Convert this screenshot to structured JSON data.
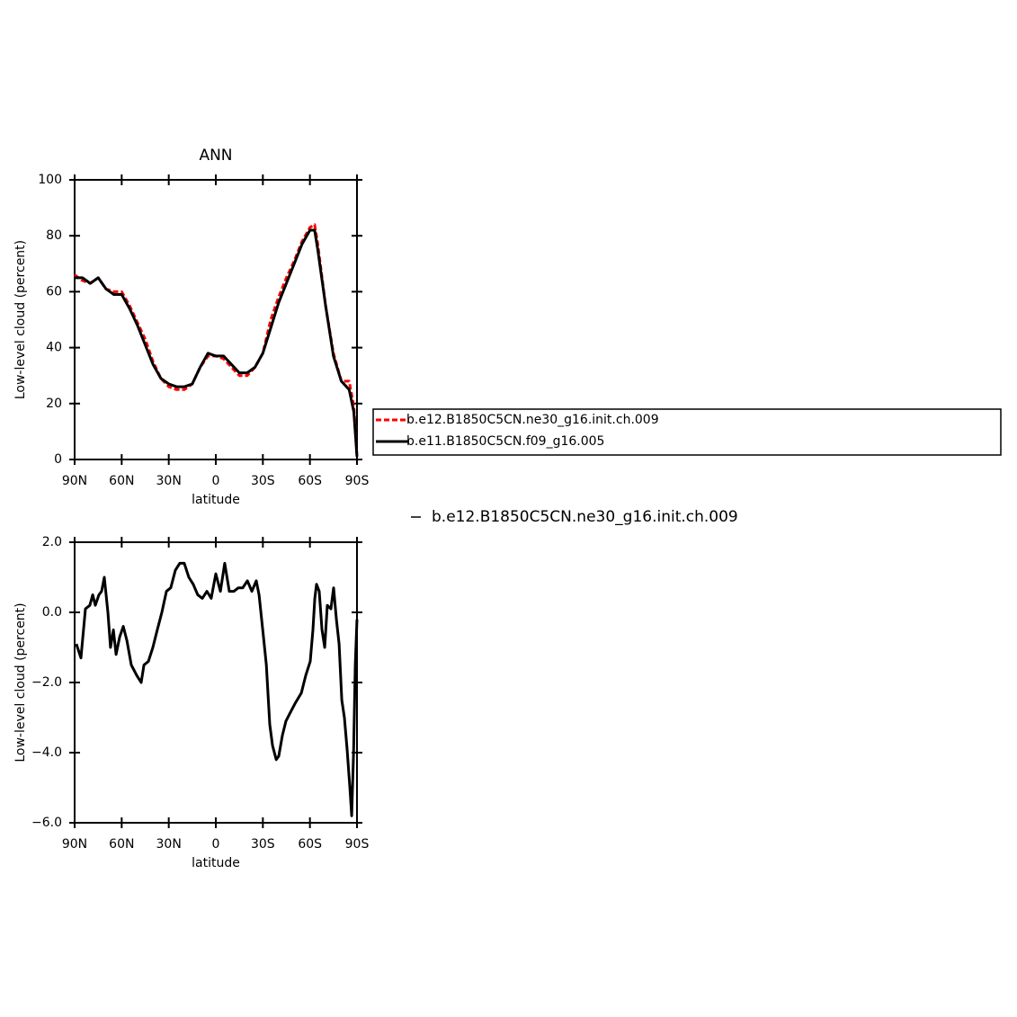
{
  "chart_data": [
    {
      "type": "line",
      "title": "ANN",
      "xlabel": "latitude",
      "ylabel": "Low-level cloud (percent)",
      "x": [
        90,
        85,
        80,
        75,
        70,
        65,
        60,
        55,
        50,
        45,
        40,
        35,
        30,
        25,
        20,
        15,
        10,
        5,
        0,
        -5,
        -10,
        -15,
        -20,
        -25,
        -30,
        -35,
        -40,
        -45,
        -50,
        -55,
        -60,
        -63,
        -65,
        -70,
        -75,
        -80,
        -85,
        -88,
        -90
      ],
      "series": [
        {
          "name": "b.e12.B1850C5CN.ne30_g16.init.ch.009",
          "color": "#ff0000",
          "dashed": true,
          "values": [
            66,
            64,
            63,
            65,
            61,
            60,
            60,
            55,
            49,
            43,
            35,
            29,
            26,
            25,
            25,
            27,
            33,
            37,
            37,
            36,
            33,
            30,
            30,
            33,
            38,
            50,
            58,
            65,
            71,
            78,
            83,
            84,
            77,
            55,
            38,
            28,
            28,
            19,
            1
          ]
        },
        {
          "name": "b.e11.B1850C5CN.f09_g16.005",
          "color": "#000000",
          "dashed": false,
          "values": [
            65,
            65,
            63,
            65,
            61,
            59,
            59,
            54,
            48,
            41,
            34,
            29,
            27,
            26,
            26,
            27,
            33,
            38,
            37,
            37,
            34,
            31,
            31,
            33,
            38,
            47,
            56,
            63,
            70,
            77,
            82,
            82,
            75,
            55,
            37,
            28,
            25,
            17,
            1
          ]
        }
      ],
      "xlim": [
        90,
        -90
      ],
      "xticks": [
        {
          "value": 90,
          "label": "90N"
        },
        {
          "value": 60,
          "label": "60N"
        },
        {
          "value": 30,
          "label": "30N"
        },
        0,
        {
          "value": -30,
          "label": "30S"
        },
        {
          "value": -60,
          "label": "60S"
        },
        {
          "value": -90,
          "label": "90S"
        }
      ],
      "ylim": [
        0,
        100
      ],
      "yticks": [
        0,
        20,
        40,
        60,
        80,
        100
      ],
      "legend": "right-boxed"
    },
    {
      "type": "line",
      "xlabel": "latitude",
      "ylabel": "Low-level cloud (percent)",
      "x": [
        88.9,
        86.0,
        83.1,
        80.3,
        78.5,
        76.8,
        74.5,
        72.8,
        71.1,
        68.8,
        67.1,
        65.3,
        63.6,
        61.3,
        59.0,
        56.7,
        53.9,
        50.4,
        47.6,
        45.8,
        43.0,
        40.1,
        37.3,
        34.4,
        31.5,
        28.7,
        25.8,
        23.0,
        20.1,
        17.2,
        14.4,
        11.5,
        8.6,
        5.7,
        2.9,
        0.0,
        -2.9,
        -5.7,
        -8.6,
        -11.5,
        -14.4,
        -17.2,
        -20.1,
        -23.0,
        -25.8,
        -27.6,
        -29.9,
        -32.2,
        -34.4,
        -36.2,
        -38.5,
        -40.1,
        -42.5,
        -44.7,
        -47.0,
        -50.5,
        -54.5,
        -57.3,
        -60.2,
        -61.9,
        -63.1,
        -64.2,
        -65.9,
        -67.7,
        -69.4,
        -71.1,
        -73.4,
        -75.1,
        -76.9,
        -78.6,
        -80.3,
        -82.0,
        -83.7,
        -85.5,
        -86.6,
        -87.8,
        -88.9,
        -90.0
      ],
      "series": [
        {
          "name": "b.e12.B1850C5CN.ne30_g16.init.ch.009",
          "color": "#000000",
          "dashed": false,
          "values": [
            -0.9,
            -1.3,
            0.1,
            0.2,
            0.5,
            0.2,
            0.5,
            0.6,
            1.0,
            0.0,
            -1.0,
            -0.5,
            -1.2,
            -0.7,
            -0.4,
            -0.8,
            -1.5,
            -1.8,
            -2.0,
            -1.5,
            -1.4,
            -1.0,
            -0.5,
            0.0,
            0.6,
            0.7,
            1.2,
            1.4,
            1.4,
            1.0,
            0.8,
            0.5,
            0.4,
            0.6,
            0.4,
            1.1,
            0.6,
            1.4,
            0.6,
            0.6,
            0.7,
            0.7,
            0.9,
            0.6,
            0.9,
            0.5,
            -0.5,
            -1.5,
            -3.2,
            -3.8,
            -4.2,
            -4.1,
            -3.5,
            -3.1,
            -2.9,
            -2.6,
            -2.3,
            -1.8,
            -1.4,
            -0.5,
            0.4,
            0.8,
            0.6,
            -0.5,
            -1.0,
            0.2,
            0.1,
            0.7,
            -0.2,
            -0.9,
            -2.5,
            -3.0,
            -3.9,
            -5.0,
            -5.8,
            -4.0,
            -1.5,
            -0.2
          ]
        }
      ],
      "xlim": [
        90,
        -90
      ],
      "xticks": [
        {
          "value": 90,
          "label": "90N"
        },
        {
          "value": 60,
          "label": "60N"
        },
        {
          "value": 30,
          "label": "30N"
        },
        0,
        {
          "value": -30,
          "label": "30S"
        },
        {
          "value": -60,
          "label": "60S"
        },
        {
          "value": -90,
          "label": "90S"
        }
      ],
      "ylim": [
        -6,
        2
      ],
      "yticks": [
        {
          "value": -6,
          "label": "−6.0"
        },
        {
          "value": -4,
          "label": "−4.0"
        },
        {
          "value": -2,
          "label": "−2.0"
        },
        {
          "value": 0,
          "label": "0.0"
        },
        {
          "value": 2,
          "label": "2.0"
        }
      ],
      "legend": "right-plain"
    }
  ]
}
